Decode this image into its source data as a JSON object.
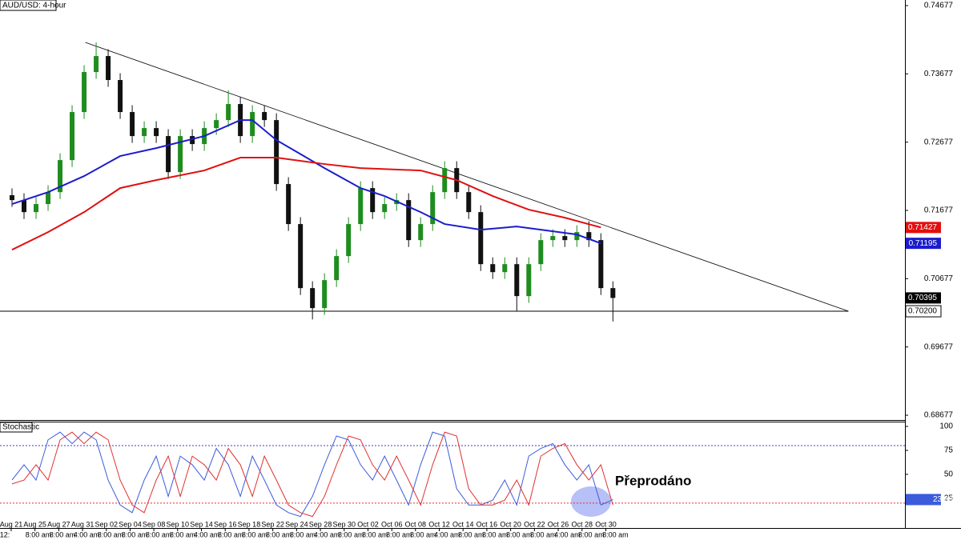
{
  "chart_data": [
    {
      "type": "candlestick",
      "title": "AUD/USD: 4-hour",
      "x": [
        1,
        2,
        3,
        4,
        5,
        6,
        7,
        8,
        9,
        10,
        11,
        12,
        13,
        14,
        15,
        16,
        17,
        18,
        19,
        20,
        21,
        22,
        23,
        24,
        25,
        26,
        27,
        28,
        29,
        30,
        31,
        32,
        33,
        34,
        35,
        36,
        37,
        38,
        39,
        40,
        41,
        42,
        43,
        44,
        45,
        46,
        47,
        48,
        49,
        50,
        51
      ],
      "open": [
        0.719,
        0.71828,
        0.71652,
        0.7177,
        0.71945,
        0.72414,
        0.73118,
        0.73704,
        0.73938,
        0.73587,
        0.73118,
        0.72766,
        0.72883,
        0.72766,
        0.72238,
        0.72766,
        0.72649,
        0.72883,
        0.73,
        0.73235,
        0.72766,
        0.73118,
        0.73,
        0.72063,
        0.71477,
        0.70539,
        0.70246,
        0.70656,
        0.71008,
        0.71477,
        0.72004,
        0.71652,
        0.7177,
        0.71828,
        0.71242,
        0.71477,
        0.71945,
        0.72297,
        0.71945,
        0.71652,
        0.7089,
        0.70773,
        0.7089,
        0.70422,
        0.7089,
        0.71242,
        0.71301,
        0.71242,
        0.71359,
        0.71242,
        0.70539
      ],
      "high": [
        0.72,
        0.71928,
        0.7187,
        0.72045,
        0.72514,
        0.73218,
        0.73804,
        0.74138,
        0.74038,
        0.73687,
        0.73218,
        0.72983,
        0.72983,
        0.72866,
        0.72866,
        0.72866,
        0.72983,
        0.731,
        0.73435,
        0.73335,
        0.73218,
        0.73218,
        0.731,
        0.72163,
        0.71577,
        0.70639,
        0.70756,
        0.71108,
        0.71577,
        0.72104,
        0.72104,
        0.7187,
        0.71928,
        0.71928,
        0.71577,
        0.72045,
        0.72397,
        0.72397,
        0.72045,
        0.71752,
        0.7099,
        0.7099,
        0.7099,
        0.7099,
        0.71342,
        0.71401,
        0.71401,
        0.71459,
        0.7152,
        0.71342,
        0.70639
      ],
      "low": [
        0.71728,
        0.71552,
        0.71552,
        0.7167,
        0.71845,
        0.72314,
        0.73018,
        0.73604,
        0.73487,
        0.73018,
        0.72666,
        0.72666,
        0.72666,
        0.72138,
        0.72138,
        0.72549,
        0.72549,
        0.72783,
        0.729,
        0.72666,
        0.72666,
        0.729,
        0.71963,
        0.71377,
        0.70439,
        0.7008,
        0.70146,
        0.70556,
        0.70908,
        0.71377,
        0.71552,
        0.71552,
        0.7167,
        0.71142,
        0.71142,
        0.71377,
        0.71845,
        0.71845,
        0.71552,
        0.7079,
        0.70673,
        0.70673,
        0.702,
        0.70322,
        0.7079,
        0.71142,
        0.71142,
        0.71142,
        0.71142,
        0.70439,
        0.7005
      ],
      "close": [
        0.71828,
        0.71652,
        0.7177,
        0.71945,
        0.72414,
        0.73118,
        0.73704,
        0.73938,
        0.73587,
        0.73118,
        0.72766,
        0.72883,
        0.72766,
        0.72238,
        0.72766,
        0.72649,
        0.72883,
        0.73,
        0.73235,
        0.72766,
        0.73118,
        0.73,
        0.72063,
        0.71477,
        0.70539,
        0.70246,
        0.70656,
        0.71008,
        0.71477,
        0.72004,
        0.71652,
        0.7177,
        0.71828,
        0.71242,
        0.71477,
        0.71945,
        0.72297,
        0.71945,
        0.71652,
        0.7089,
        0.70773,
        0.7089,
        0.70422,
        0.7089,
        0.71242,
        0.71301,
        0.71242,
        0.71359,
        0.71242,
        0.70539,
        0.70395
      ],
      "up_color": "#1f8c1f",
      "down_color": "#111111",
      "series": [
        {
          "color": "#1c1ccc",
          "x": [
            1,
            4,
            7,
            10,
            13,
            17,
            20,
            21,
            23,
            27,
            30,
            32,
            35,
            37,
            40,
            43,
            45,
            48,
            50
          ],
          "values": [
            0.7177,
            0.71945,
            0.7218,
            0.72473,
            0.7259,
            0.72766,
            0.73,
            0.73,
            0.72707,
            0.72297,
            0.72004,
            0.71887,
            0.71652,
            0.71477,
            0.71395,
            0.71441,
            0.71395,
            0.71324,
            0.71195
          ]
        },
        {
          "color": "#e01010",
          "x": [
            1,
            4,
            7,
            10,
            13,
            17,
            20,
            23,
            27,
            30,
            35,
            38,
            41,
            44,
            47,
            50
          ],
          "values": [
            0.71101,
            0.71359,
            0.71652,
            0.72004,
            0.72121,
            0.72262,
            0.7245,
            0.7245,
            0.72356,
            0.72297,
            0.72262,
            0.72121,
            0.71887,
            0.71688,
            0.7157,
            0.71427
          ]
        }
      ],
      "trendline": {
        "x": [
          7.1,
          70.6
        ],
        "values": [
          0.74138,
          0.702
        ]
      },
      "support": {
        "value": 0.702,
        "label": "0.70200"
      },
      "xlim": [
        0,
        75.3
      ],
      "ylim": [
        0.68607,
        0.74759
      ],
      "yticks": [
        0.74677,
        0.73677,
        0.72677,
        0.71677,
        0.70677,
        0.69677,
        0.68677
      ],
      "xticks": [
        {
          "value": 0.93,
          "label": "Aug 21"
        },
        {
          "value": 2.91,
          "label": "Aug 25"
        },
        {
          "value": 4.89,
          "label": "Aug 27"
        },
        {
          "value": 6.87,
          "label": "Aug 31"
        },
        {
          "value": 8.85,
          "label": "Sep 02"
        },
        {
          "value": 10.83,
          "label": "Sep 04"
        },
        {
          "value": 12.8,
          "label": "Sep 08"
        },
        {
          "value": 14.78,
          "label": "Sep 10"
        },
        {
          "value": 16.76,
          "label": "Sep 14"
        },
        {
          "value": 18.74,
          "label": "Sep 16"
        },
        {
          "value": 20.72,
          "label": "Sep 18"
        },
        {
          "value": 22.7,
          "label": "Sep 22"
        },
        {
          "value": 24.68,
          "label": "Sep 24"
        },
        {
          "value": 26.66,
          "label": "Sep 28"
        },
        {
          "value": 28.64,
          "label": "Sep 30"
        },
        {
          "value": 30.62,
          "label": "Oct 02"
        },
        {
          "value": 32.6,
          "label": "Oct 06"
        },
        {
          "value": 34.57,
          "label": "Oct 08"
        },
        {
          "value": 36.55,
          "label": "Oct 12"
        },
        {
          "value": 38.53,
          "label": "Oct 14"
        },
        {
          "value": 40.51,
          "label": "Oct 16"
        },
        {
          "value": 42.49,
          "label": "Oct 20"
        },
        {
          "value": 44.47,
          "label": "Oct 22"
        },
        {
          "value": 46.45,
          "label": "Oct 26"
        },
        {
          "value": 48.43,
          "label": "Oct 28"
        },
        {
          "value": 50.41,
          "label": "Oct 30"
        }
      ],
      "xticks2": [
        {
          "value": 0.4,
          "label": "12:"
        },
        {
          "value": 3.2,
          "label": "8:00 am"
        },
        {
          "value": 5.2,
          "label": "8:00 am"
        },
        {
          "value": 7.2,
          "label": "4:00 am"
        },
        {
          "value": 9.2,
          "label": "8:00 am"
        },
        {
          "value": 11.2,
          "label": "8:00 am"
        },
        {
          "value": 13.2,
          "label": "8:00 am"
        },
        {
          "value": 15.2,
          "label": "8:00 am"
        },
        {
          "value": 17.2,
          "label": "4:00 am"
        },
        {
          "value": 19.2,
          "label": "8:00 am"
        },
        {
          "value": 21.2,
          "label": "8:00 am"
        },
        {
          "value": 23.2,
          "label": "8:00 am"
        },
        {
          "value": 25.2,
          "label": "8:00 am"
        },
        {
          "value": 27.2,
          "label": "4:00 am"
        },
        {
          "value": 29.2,
          "label": "8:00 am"
        },
        {
          "value": 31.2,
          "label": "8:00 am"
        },
        {
          "value": 33.2,
          "label": "8:00 am"
        },
        {
          "value": 35.2,
          "label": "8:00 am"
        },
        {
          "value": 37.2,
          "label": "4:00 am"
        },
        {
          "value": 39.2,
          "label": "8:00 am"
        },
        {
          "value": 41.2,
          "label": "8:00 am"
        },
        {
          "value": 43.2,
          "label": "8:00 am"
        },
        {
          "value": 45.2,
          "label": "8:00 am"
        },
        {
          "value": 47.2,
          "label": "4:00 am"
        },
        {
          "value": 49.2,
          "label": "8:00 am"
        },
        {
          "value": 51.2,
          "label": "8:00 am"
        }
      ]
    },
    {
      "type": "stochastic",
      "title": "Stochastic",
      "annotation": "Přeprodáno",
      "x": [
        1,
        2,
        3,
        4,
        5,
        6,
        7,
        8,
        9,
        10,
        11,
        12,
        13,
        14,
        15,
        16,
        17,
        18,
        19,
        20,
        21,
        22,
        23,
        24,
        25,
        26,
        27,
        28,
        29,
        30,
        31,
        32,
        33,
        34,
        35,
        36,
        37,
        38,
        39,
        40,
        41,
        42,
        43,
        44,
        45,
        46,
        47,
        48,
        49,
        50,
        51
      ],
      "series": [
        {
          "color": "#3b5bdb",
          "values": [
            44,
            60,
            44,
            86,
            94,
            82,
            94,
            86,
            44,
            18,
            10,
            44,
            69,
            27,
            69,
            60,
            44,
            77,
            60,
            27,
            69,
            44,
            18,
            10,
            6,
            27,
            60,
            90,
            86,
            60,
            44,
            69,
            44,
            18,
            60,
            94,
            90,
            35,
            18,
            18,
            23,
            44,
            18,
            69,
            77,
            82,
            60,
            44,
            60,
            18,
            23.68
          ]
        },
        {
          "color": "#e03030",
          "values": [
            40,
            44,
            60,
            44,
            86,
            94,
            82,
            94,
            86,
            44,
            18,
            10,
            44,
            69,
            27,
            69,
            60,
            44,
            77,
            60,
            27,
            69,
            44,
            18,
            10,
            6,
            27,
            60,
            90,
            86,
            60,
            44,
            69,
            44,
            18,
            60,
            94,
            90,
            35,
            18,
            18,
            23,
            44,
            18,
            69,
            77,
            82,
            60,
            44,
            60,
            18
          ]
        }
      ],
      "levels": [
        {
          "value": 80,
          "color": "#3b3bcc"
        },
        {
          "value": 20,
          "color": "#e03030"
        }
      ],
      "xlim": [
        0,
        75.3
      ],
      "ylim": [
        -6,
        105
      ],
      "yticks": [
        100,
        75,
        50,
        25
      ]
    }
  ]
}
